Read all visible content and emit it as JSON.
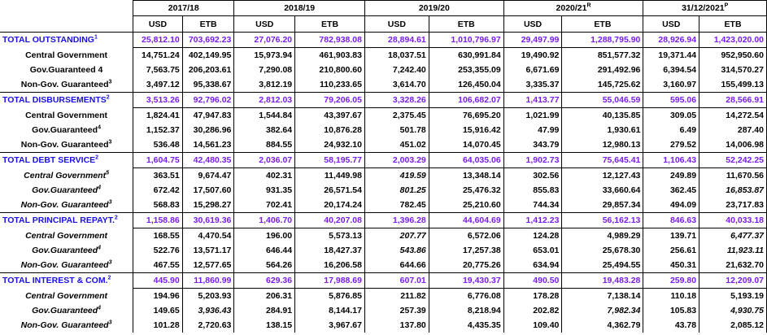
{
  "years": [
    "2017/18",
    "2018/19",
    "2019/20",
    "2020/21",
    "31/12/2021"
  ],
  "year_marks": [
    "",
    "",
    "",
    "R",
    "P"
  ],
  "currency": [
    "USD",
    "ETB"
  ],
  "sections": [
    {
      "label": "TOTAL OUTSTANDING",
      "note": "1",
      "values": [
        "25,812.10",
        "703,692.23",
        "27,076.20",
        "782,938.08",
        "28,894.61",
        "1,010,796.97",
        "29,497.99",
        "1,288,795.90",
        "28,926.94",
        "1,423,020.00"
      ],
      "rows": [
        {
          "label": "Central Government",
          "note": "",
          "values": [
            "14,751.24",
            "402,149.95",
            "15,973.94",
            "461,903.83",
            "18,037.51",
            "630,991.84",
            "19,490.92",
            "851,577.32",
            "19,371.44",
            "952,950.60"
          ]
        },
        {
          "label": "Gov.Guaranteed 4",
          "note": "",
          "values": [
            "7,563.75",
            "206,203.61",
            "7,290.08",
            "210,800.60",
            "7,242.40",
            "253,355.09",
            "6,671.69",
            "291,492.96",
            "6,394.54",
            "314,570.27"
          ]
        },
        {
          "label": "Non-Gov. Guaranteed",
          "note": "3",
          "values": [
            "3,497.12",
            "95,338.67",
            "3,812.19",
            "110,233.65",
            "3,614.70",
            "126,450.04",
            "3,335.37",
            "145,725.62",
            "3,160.97",
            "155,499.13"
          ]
        }
      ]
    },
    {
      "label": "TOTAL DISBURSEMENTS",
      "note": "2",
      "values": [
        "3,513.26",
        "92,796.02",
        "2,812.03",
        "79,206.05",
        "3,328.26",
        "106,682.07",
        "1,413.77",
        "55,046.59",
        "595.06",
        "28,566.91"
      ],
      "rows": [
        {
          "label": "Central Government",
          "note": "",
          "values": [
            "1,824.41",
            "47,947.83",
            "1,544.84",
            "43,397.67",
            "2,375.45",
            "76,695.20",
            "1,021.99",
            "40,135.85",
            "309.05",
            "14,272.54"
          ]
        },
        {
          "label": "Gov.Guaranteed",
          "note": "4",
          "values": [
            "1,152.37",
            "30,286.96",
            "382.64",
            "10,876.28",
            "501.78",
            "15,916.42",
            "47.99",
            "1,930.61",
            "6.49",
            "287.40"
          ]
        },
        {
          "label": "Non-Gov. Guaranteed",
          "note": "3",
          "values": [
            "536.48",
            "14,561.23",
            "884.55",
            "24,932.10",
            "451.02",
            "14,070.45",
            "343.79",
            "12,980.13",
            "279.52",
            "14,006.98"
          ]
        }
      ]
    },
    {
      "label": "TOTAL DEBT SERVICE",
      "note": "2",
      "values": [
        "1,604.75",
        "42,480.35",
        "2,036.07",
        "58,195.77",
        "2,003.29",
        "64,035.06",
        "1,902.73",
        "75,645.41",
        "1,106.43",
        "52,242.25"
      ],
      "rows": [
        {
          "label": "Central Government",
          "note": "5",
          "values": [
            "363.51",
            "9,674.47",
            "402.31",
            "11,449.98",
            "419.59",
            "13,348.14",
            "302.56",
            "12,127.43",
            "249.89",
            "11,670.56"
          ]
        },
        {
          "label": "Gov.Guaranteed",
          "note": "4",
          "values": [
            "672.42",
            "17,507.60",
            "931.35",
            "26,571.54",
            "801.25",
            "25,476.32",
            "855.83",
            "33,660.64",
            "362.45",
            "16,853.87"
          ]
        },
        {
          "label": "Non-Gov. Guaranteed",
          "note": "3",
          "values": [
            "568.83",
            "15,298.27",
            "702.41",
            "20,174.24",
            "782.45",
            "25,210.60",
            "744.34",
            "29,857.34",
            "494.09",
            "23,717.83"
          ]
        }
      ]
    },
    {
      "label": "TOTAL PRINCIPAL REPAYT.",
      "note": "2",
      "values": [
        "1,158.86",
        "30,619.36",
        "1,406.70",
        "40,207.08",
        "1,396.28",
        "44,604.69",
        "1,412.23",
        "56,162.13",
        "846.63",
        "40,033.18"
      ],
      "rows": [
        {
          "label": "Central Government",
          "note": "",
          "values": [
            "168.55",
            "4,470.54",
            "196.00",
            "5,573.13",
            "207.77",
            "6,572.06",
            "124.28",
            "4,989.29",
            "139.71",
            "6,477.37"
          ]
        },
        {
          "label": "Gov.Guaranteed",
          "note": "4",
          "values": [
            "522.76",
            "13,571.17",
            "646.44",
            "18,427.37",
            "543.86",
            "17,257.38",
            "653.01",
            "25,678.30",
            "256.61",
            "11,923.11"
          ]
        },
        {
          "label": "Non-Gov. Guaranteed",
          "note": "3",
          "values": [
            "467.55",
            "12,577.65",
            "564.26",
            "16,206.58",
            "644.66",
            "20,775.26",
            "634.94",
            "25,494.55",
            "450.31",
            "21,632.70"
          ]
        }
      ]
    },
    {
      "label": "TOTAL INTEREST & COM.",
      "note": "2",
      "values": [
        "445.90",
        "11,860.99",
        "629.36",
        "17,988.69",
        "607.01",
        "19,430.37",
        "490.50",
        "19,483.28",
        "259.80",
        "12,209.07"
      ],
      "rows": [
        {
          "label": "Central Government",
          "note": "",
          "values": [
            "194.96",
            "5,203.93",
            "206.31",
            "5,876.85",
            "211.82",
            "6,776.08",
            "178.28",
            "7,138.14",
            "110.18",
            "5,193.19"
          ]
        },
        {
          "label": "Gov.Guaranteed",
          "note": "4",
          "values": [
            "149.65",
            "3,936.43",
            "284.91",
            "8,144.17",
            "257.39",
            "8,218.94",
            "202.82",
            "7,982.34",
            "105.83",
            "4,930.75"
          ]
        },
        {
          "label": "Non-Gov. Guaranteed",
          "note": "3",
          "values": [
            "101.28",
            "2,720.63",
            "138.15",
            "3,967.67",
            "137.80",
            "4,435.35",
            "109.40",
            "4,362.79",
            "43.78",
            "2,085.12"
          ]
        }
      ]
    }
  ]
}
